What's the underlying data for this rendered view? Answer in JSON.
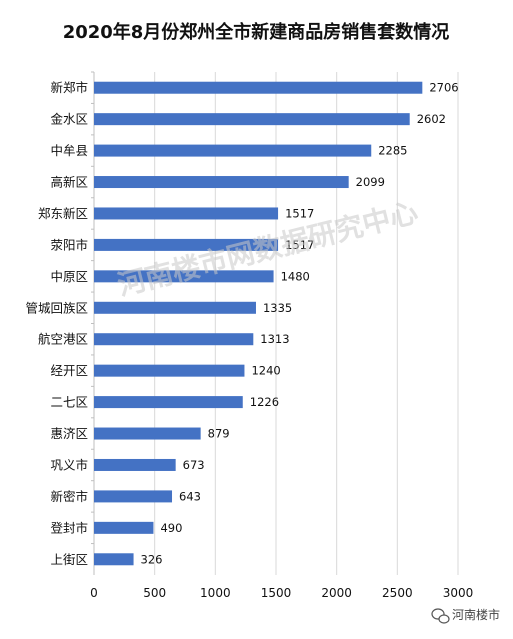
{
  "chart_data": {
    "type": "bar",
    "orientation": "horizontal",
    "title": "2020年8月份郑州全市新建商品房销售套数情况",
    "categories": [
      "新郑市",
      "金水区",
      "中牟县",
      "高新区",
      "郑东新区",
      "荥阳市",
      "中原区",
      "管城回族区",
      "航空港区",
      "经开区",
      "二七区",
      "惠济区",
      "巩义市",
      "新密市",
      "登封市",
      "上街区"
    ],
    "values": [
      2706,
      2602,
      2285,
      2099,
      1517,
      1517,
      1480,
      1335,
      1313,
      1240,
      1226,
      879,
      673,
      643,
      490,
      326
    ],
    "xticks": [
      0,
      500,
      1000,
      1500,
      2000,
      2500,
      3000
    ],
    "xlim": [
      0,
      3000
    ],
    "grid": true,
    "bar_color": "#4472C4"
  },
  "watermark": "河南楼市网数据研究中心",
  "logo": {
    "text": "河南楼市",
    "icon": "wechat-icon"
  }
}
